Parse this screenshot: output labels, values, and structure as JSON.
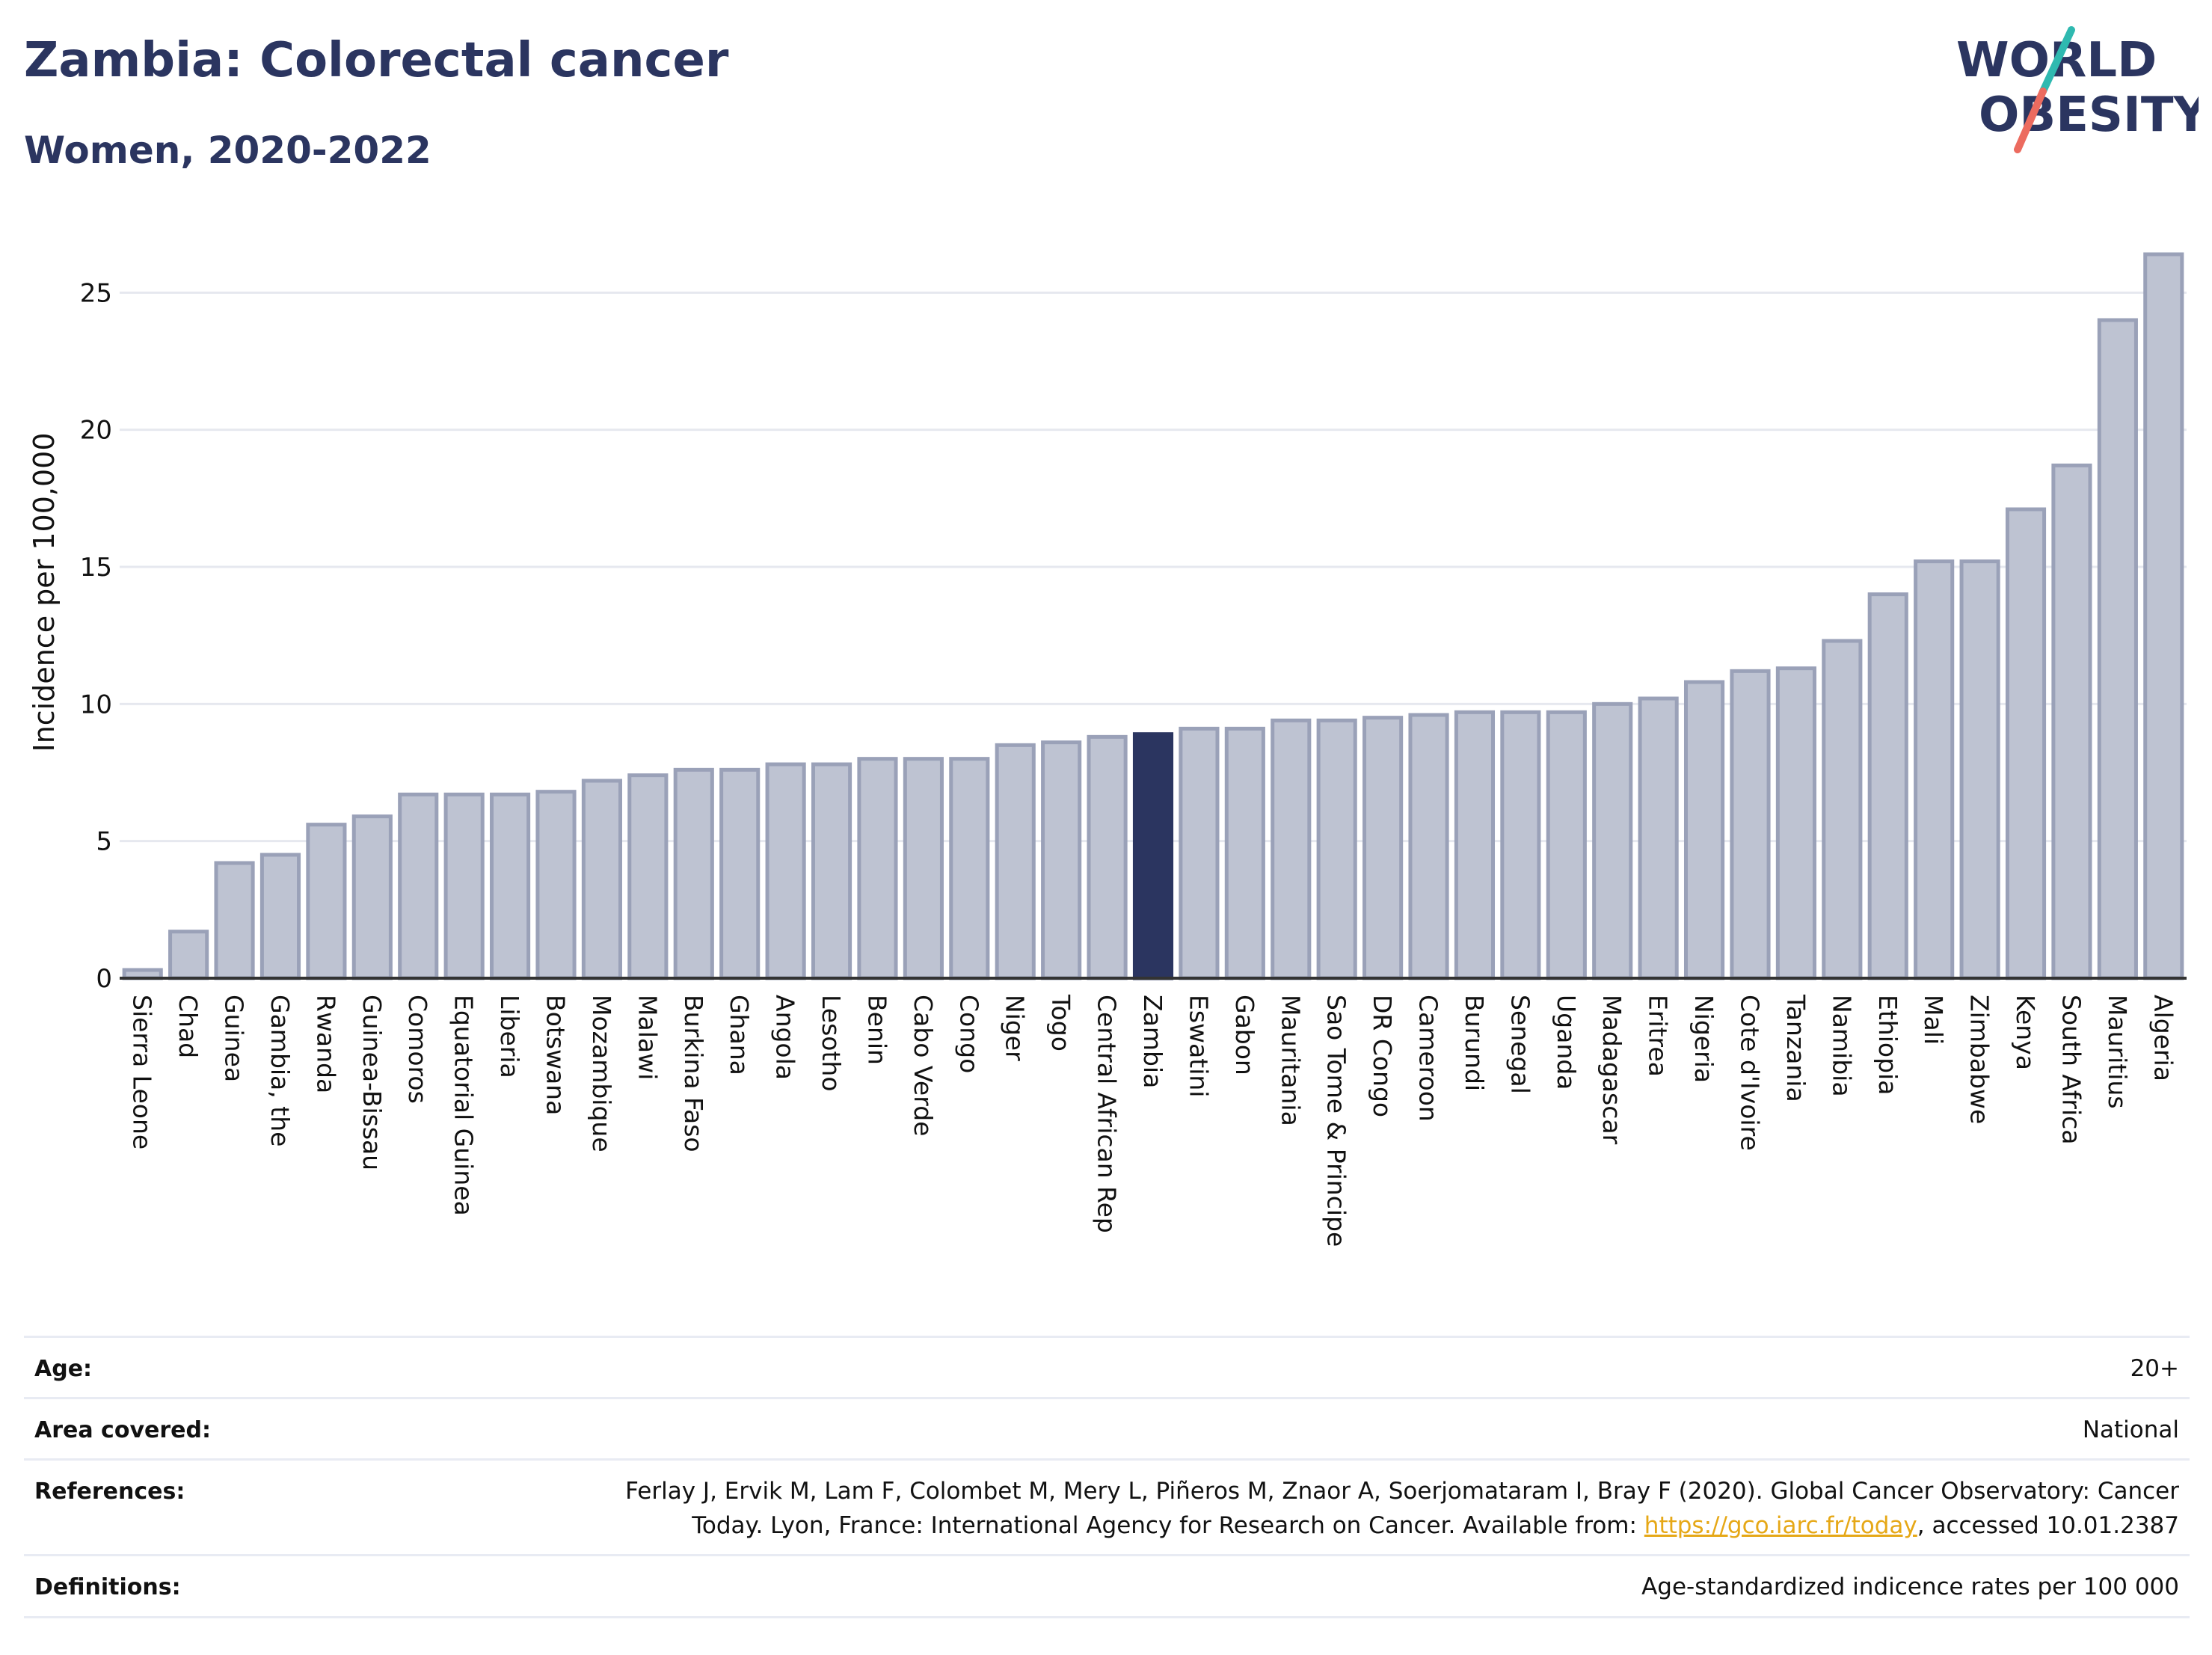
{
  "header": {
    "title": "Zambia: Colorectal cancer",
    "subtitle": "Women, 2020-2022",
    "logo_line1": "WORLD",
    "logo_line2": "OBESITY"
  },
  "colors": {
    "brand_navy": "#2b3560",
    "bar_fill": "#bec3d2",
    "bar_stroke": "#9aa1b8",
    "highlight": "#2b3560",
    "logo_teal": "#2fb9b0",
    "logo_coral": "#ec6b5f",
    "link": "#e6a817"
  },
  "chart_data": {
    "type": "bar",
    "ylabel": "Incidence per 100,000",
    "xlabel": "",
    "ylim": [
      0,
      27
    ],
    "yticks": [
      0,
      5,
      10,
      15,
      20,
      25
    ],
    "highlight": "Zambia",
    "categories": [
      "Sierra Leone",
      "Chad",
      "Guinea",
      "Gambia, the",
      "Rwanda",
      "Guinea-Bissau",
      "Comoros",
      "Equatorial Guinea",
      "Liberia",
      "Botswana",
      "Mozambique",
      "Malawi",
      "Burkina Faso",
      "Ghana",
      "Angola",
      "Lesotho",
      "Benin",
      "Cabo Verde",
      "Congo",
      "Niger",
      "Togo",
      "Central African Rep",
      "Zambia",
      "Eswatini",
      "Gabon",
      "Mauritania",
      "Sao Tome & Principe",
      "DR Congo",
      "Cameroon",
      "Burundi",
      "Senegal",
      "Uganda",
      "Madagascar",
      "Eritrea",
      "Nigeria",
      "Cote d'Ivoire",
      "Tanzania",
      "Namibia",
      "Ethiopia",
      "Mali",
      "Zimbabwe",
      "Kenya",
      "South Africa",
      "Mauritius",
      "Algeria"
    ],
    "values": [
      0.3,
      1.7,
      4.2,
      4.5,
      5.6,
      5.9,
      6.7,
      6.7,
      6.7,
      6.8,
      7.2,
      7.4,
      7.6,
      7.6,
      7.8,
      7.8,
      8.0,
      8.0,
      8.0,
      8.5,
      8.6,
      8.8,
      8.9,
      9.1,
      9.1,
      9.4,
      9.4,
      9.5,
      9.6,
      9.7,
      9.7,
      9.7,
      10.0,
      10.2,
      10.8,
      11.2,
      11.3,
      12.3,
      14.0,
      15.2,
      15.2,
      17.1,
      18.7,
      24.0,
      26.4
    ],
    "grid": true
  },
  "meta": {
    "age_label": "Age:",
    "age_value": "20+",
    "area_label": "Area covered:",
    "area_value": "National",
    "references_label": "References:",
    "references_line1": "Ferlay J, Ervik M, Lam F, Colombet M, Mery L, Piñeros M, Znaor A, Soerjomataram I, Bray F (2020). Global Cancer Observatory: Cancer",
    "references_line2_pre": "Today. Lyon, France: International Agency for Research on Cancer. Available from: ",
    "references_link": "https://gco.iarc.fr/today",
    "references_line2_post": ", accessed 10.01.2387",
    "definitions_label": "Definitions:",
    "definitions_value": "Age-standardized indicence rates per 100 000"
  }
}
